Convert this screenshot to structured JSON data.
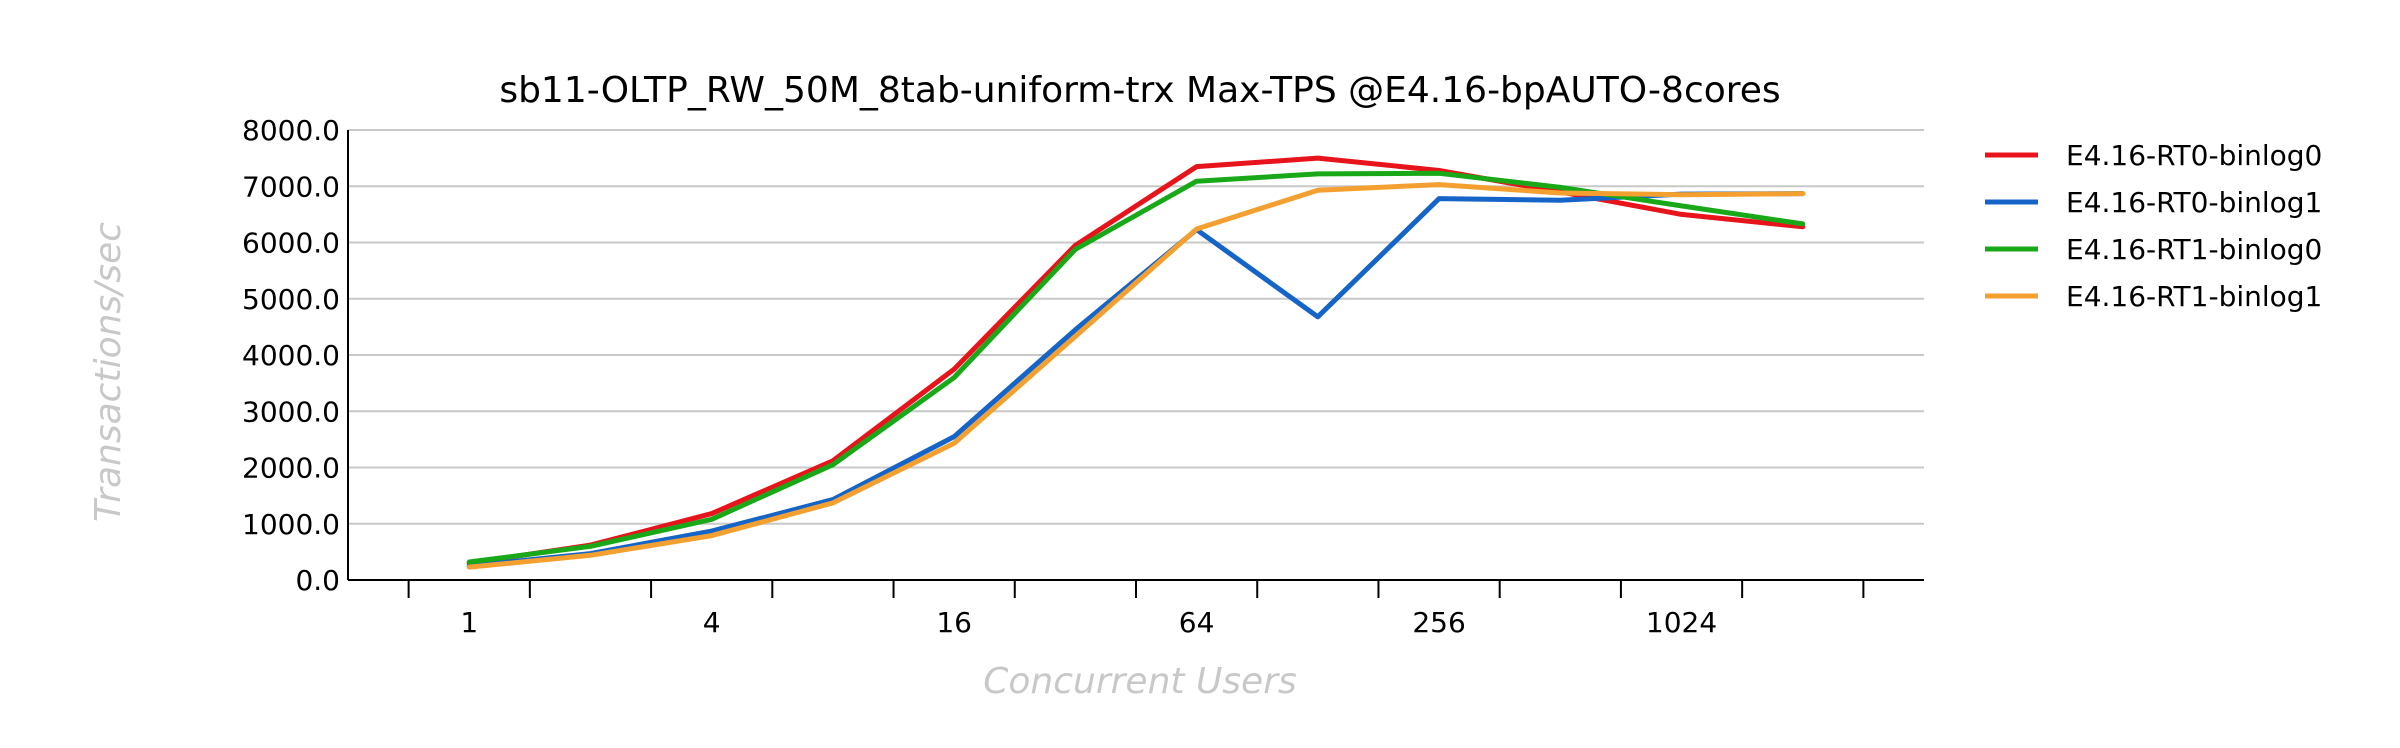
{
  "chart_data": {
    "type": "line",
    "title": "sb11-OLTP_RW_50M_8tab-uniform-trx Max-TPS @E4.16-bpAUTO-8cores",
    "xlabel": "Concurrent Users",
    "ylabel": "Transactions/sec",
    "x_scale": "log2",
    "x": [
      1,
      2,
      4,
      8,
      16,
      32,
      64,
      128,
      256,
      512,
      1024,
      2048
    ],
    "x_tick_labels": [
      "1",
      "4",
      "16",
      "64",
      "256",
      "1024"
    ],
    "x_tick_values": [
      1,
      4,
      16,
      64,
      256,
      1024
    ],
    "ylim": [
      0,
      8000
    ],
    "y_ticks": [
      "0.0",
      "1000.0",
      "2000.0",
      "3000.0",
      "4000.0",
      "5000.0",
      "6000.0",
      "7000.0",
      "8000.0"
    ],
    "grid": true,
    "legend_position": "right",
    "series": [
      {
        "name": "E4.16-RT0-binlog0",
        "color": "#e8141c",
        "values": [
          300,
          620,
          1180,
          2120,
          3750,
          5950,
          7350,
          7500,
          7280,
          6900,
          6500,
          6280
        ]
      },
      {
        "name": "E4.16-RT0-binlog1",
        "color": "#1565c8",
        "values": [
          250,
          470,
          870,
          1430,
          2550,
          4450,
          6230,
          4680,
          6780,
          6750,
          6860,
          6870
        ]
      },
      {
        "name": "E4.16-RT1-binlog0",
        "color": "#18a818",
        "values": [
          320,
          600,
          1080,
          2050,
          3600,
          5880,
          7090,
          7220,
          7230,
          6980,
          6650,
          6330
        ]
      },
      {
        "name": "E4.16-RT1-binlog1",
        "color": "#f4a030",
        "values": [
          230,
          440,
          790,
          1370,
          2430,
          4330,
          6240,
          6930,
          7030,
          6880,
          6850,
          6870
        ]
      }
    ]
  }
}
